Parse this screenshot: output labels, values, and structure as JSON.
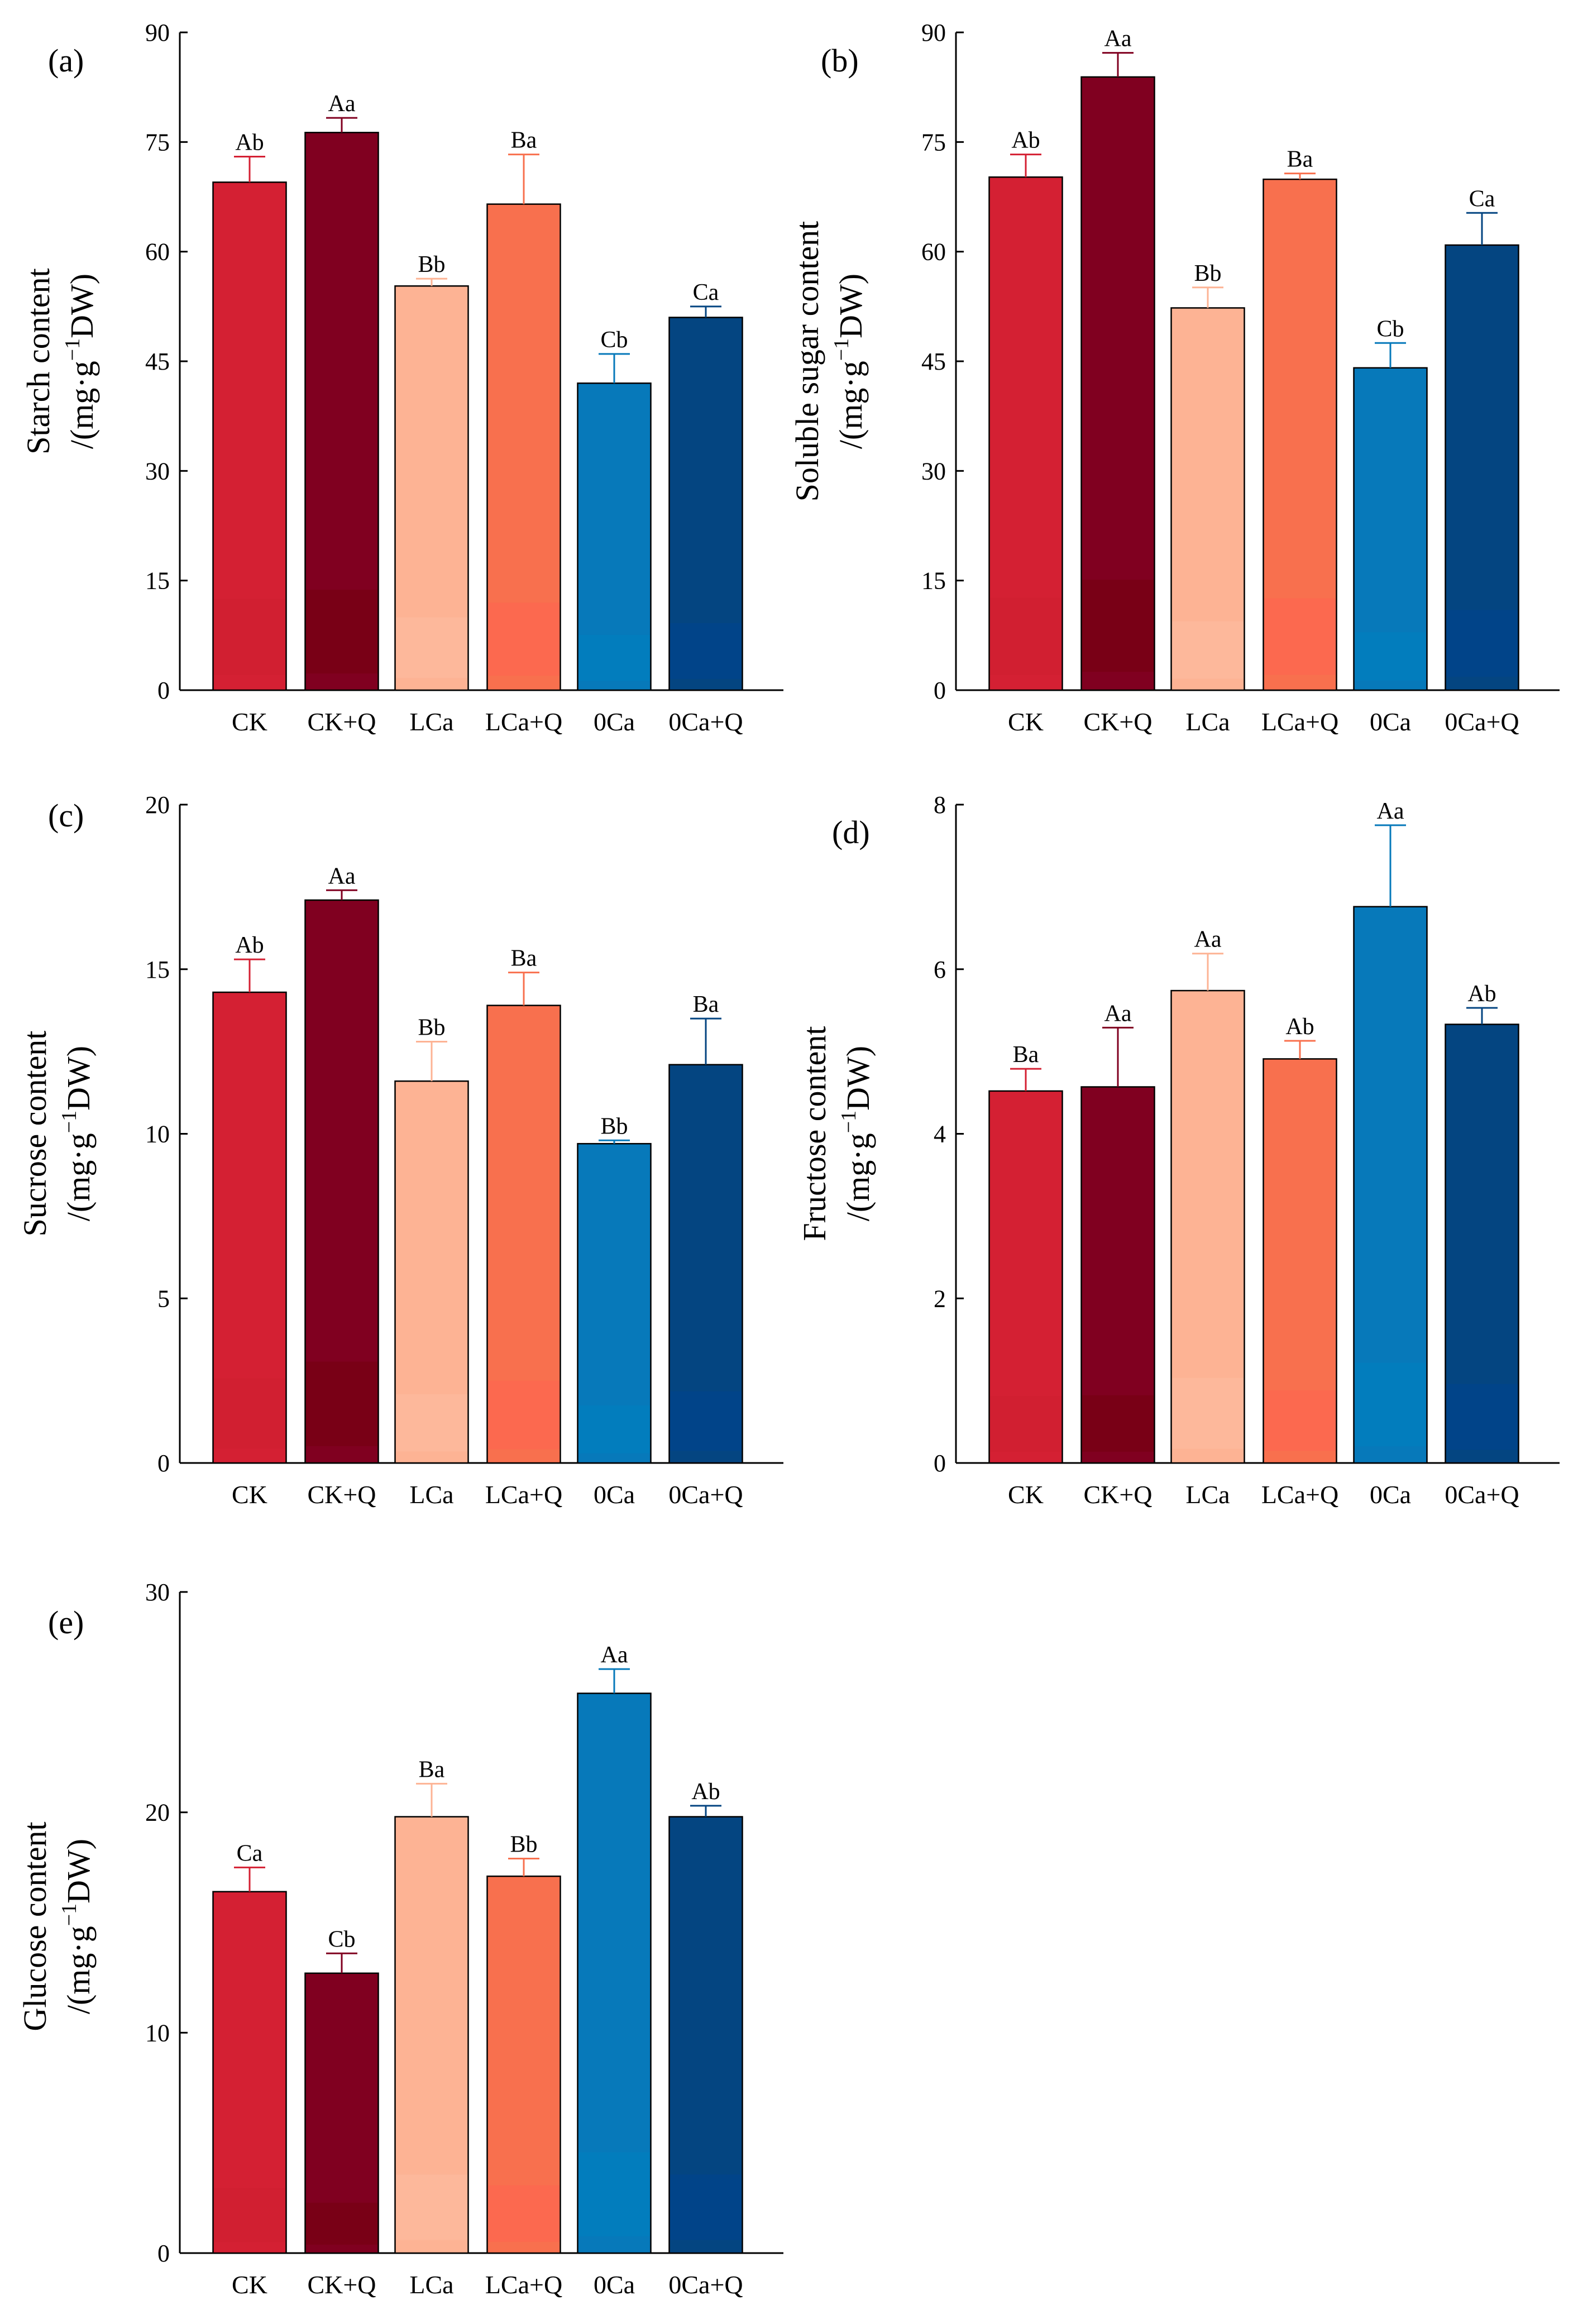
{
  "figure": {
    "categories": [
      "CK",
      "CK+Q",
      "LCa",
      "LCa+Q",
      "0Ca",
      "0Ca+Q"
    ],
    "bar_colors": [
      "#d42033",
      "#800020",
      "#fdb394",
      "#f8704e",
      "#0779ba",
      "#044581"
    ],
    "bar_highlight_colors": [
      "#cf2030",
      "#740010",
      "#fdbba0",
      "#ff6450",
      "#0080c0",
      "#004590"
    ]
  },
  "chart_data": [
    {
      "id": "a",
      "type": "bar",
      "panel_label": "(a)",
      "ylabel_line1": "Starch content",
      "ylabel_line2_prefix": "/(mg·g",
      "ylabel_sup": "−1",
      "ylabel_line2_suffix": "DW)",
      "ylim": [
        0,
        90
      ],
      "yticks": [
        0,
        15,
        30,
        45,
        60,
        75,
        90
      ],
      "values": [
        69.5,
        76.3,
        55.3,
        66.5,
        42.0,
        51.0
      ],
      "errors": [
        3.5,
        2.0,
        1.0,
        6.8,
        4.0,
        1.5
      ],
      "significance": [
        "Ab",
        "Aa",
        "Bb",
        "Ba",
        "Cb",
        "Ca"
      ]
    },
    {
      "id": "b",
      "type": "bar",
      "panel_label": "(b)",
      "ylabel_line1": "Soluble sugar content",
      "ylabel_line2_prefix": "/(mg·g",
      "ylabel_sup": "−1",
      "ylabel_line2_suffix": "DW)",
      "ylim": [
        0,
        90
      ],
      "yticks": [
        0,
        15,
        30,
        45,
        60,
        75,
        90
      ],
      "values": [
        70.2,
        83.9,
        52.3,
        69.9,
        44.1,
        60.9
      ],
      "errors": [
        3.1,
        3.3,
        2.8,
        0.8,
        3.4,
        4.4
      ],
      "significance": [
        "Ab",
        "Aa",
        "Bb",
        "Ba",
        "Cb",
        "Ca"
      ]
    },
    {
      "id": "c",
      "type": "bar",
      "panel_label": "(c)",
      "ylabel_line1": "Sucrose content",
      "ylabel_line2_prefix": "/(mg·g",
      "ylabel_sup": "−1",
      "ylabel_line2_suffix": "DW)",
      "ylim": [
        0,
        20
      ],
      "yticks": [
        0,
        5,
        10,
        15,
        20
      ],
      "values": [
        14.3,
        17.1,
        11.6,
        13.9,
        9.7,
        12.1
      ],
      "errors": [
        1.0,
        0.3,
        1.2,
        1.0,
        0.1,
        1.4
      ],
      "significance": [
        "Ab",
        "Aa",
        "Bb",
        "Ba",
        "Bb",
        "Ba"
      ]
    },
    {
      "id": "d",
      "type": "bar",
      "panel_label": "(d)",
      "ylabel_line1": "Fructose content",
      "ylabel_line2_prefix": "/(mg·g",
      "ylabel_sup": "−1",
      "ylabel_line2_suffix": "DW)",
      "ylim": [
        0,
        8
      ],
      "yticks": [
        0,
        2,
        4,
        6,
        8
      ],
      "values": [
        4.52,
        4.57,
        5.74,
        4.91,
        6.76,
        5.33
      ],
      "errors": [
        0.27,
        0.72,
        0.45,
        0.22,
        0.99,
        0.2
      ],
      "significance": [
        "Ba",
        "Aa",
        "Aa",
        "Ab",
        "Aa",
        "Ab"
      ]
    },
    {
      "id": "e",
      "type": "bar",
      "panel_label": "(e)",
      "ylabel_line1": "Glucose content",
      "ylabel_line2_prefix": "/(mg·g",
      "ylabel_sup": "−1",
      "ylabel_line2_suffix": "DW)",
      "ylim": [
        0,
        30
      ],
      "yticks": [
        0,
        10,
        20,
        30
      ],
      "values": [
        16.4,
        12.7,
        19.8,
        17.1,
        25.4,
        19.8
      ],
      "errors": [
        1.1,
        0.9,
        1.5,
        0.8,
        1.1,
        0.5
      ],
      "significance": [
        "Ca",
        "Cb",
        "Ba",
        "Bb",
        "Aa",
        "Ab"
      ]
    }
  ]
}
